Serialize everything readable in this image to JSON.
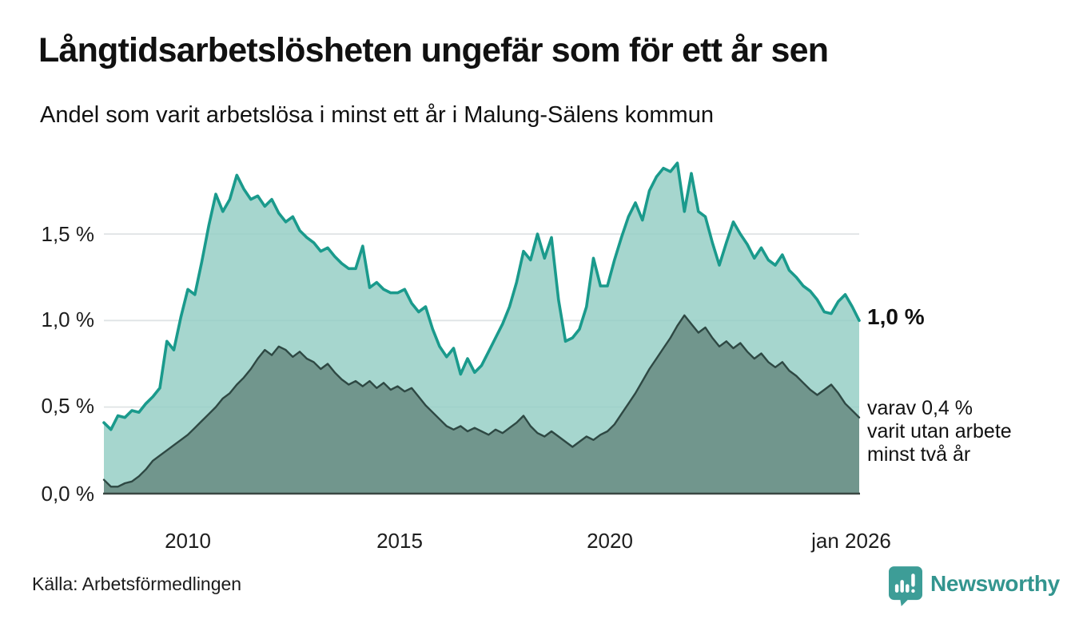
{
  "header": {
    "title": "Långtidsarbetslösheten ungefär som för ett år sen",
    "subtitle": "Andel som varit arbetslösa i minst ett år i Malung-Sälens kommun"
  },
  "chart_data": {
    "type": "area",
    "title": "Långtidsarbetslösheten ungefär som för ett år sen",
    "subtitle": "Andel som varit arbetslösa i minst ett år i Malung-Sälens kommun",
    "unit": "%",
    "x_start": 2008.0,
    "x_end": 2026.0,
    "points_per_year": 6,
    "ylim": [
      0,
      2.0
    ],
    "grid": "horizontal",
    "legend_position": "right-annotations",
    "yticks": [
      {
        "value": 1.5,
        "label": "1,5 %"
      },
      {
        "value": 1.0,
        "label": "1,0 %"
      },
      {
        "value": 0.5,
        "label": "0,5 %"
      },
      {
        "value": 0.0,
        "label": "0,0 %"
      }
    ],
    "xticks": [
      {
        "value": 2010,
        "label": "2010"
      },
      {
        "value": 2015,
        "label": "2015"
      },
      {
        "value": 2020,
        "label": "2020"
      },
      {
        "value": 2026,
        "label": "jan 2026"
      }
    ],
    "series": [
      {
        "name": "Andel arbetslösa minst ett år",
        "latest_value": 1.0,
        "values": [
          0.41,
          0.37,
          0.45,
          0.44,
          0.48,
          0.47,
          0.52,
          0.56,
          0.61,
          0.88,
          0.83,
          1.02,
          1.18,
          1.15,
          1.34,
          1.55,
          1.73,
          1.63,
          1.7,
          1.84,
          1.76,
          1.7,
          1.72,
          1.66,
          1.7,
          1.62,
          1.57,
          1.6,
          1.52,
          1.48,
          1.45,
          1.4,
          1.42,
          1.37,
          1.33,
          1.3,
          1.3,
          1.43,
          1.19,
          1.22,
          1.18,
          1.16,
          1.16,
          1.18,
          1.1,
          1.05,
          1.08,
          0.95,
          0.85,
          0.79,
          0.84,
          0.69,
          0.78,
          0.7,
          0.74,
          0.82,
          0.9,
          0.98,
          1.08,
          1.22,
          1.4,
          1.35,
          1.5,
          1.36,
          1.48,
          1.12,
          0.88,
          0.9,
          0.95,
          1.08,
          1.36,
          1.2,
          1.2,
          1.35,
          1.48,
          1.6,
          1.68,
          1.58,
          1.75,
          1.83,
          1.88,
          1.86,
          1.91,
          1.63,
          1.85,
          1.63,
          1.6,
          1.45,
          1.32,
          1.45,
          1.57,
          1.5,
          1.44,
          1.36,
          1.42,
          1.35,
          1.32,
          1.38,
          1.29,
          1.25,
          1.2,
          1.17,
          1.12,
          1.05,
          1.04,
          1.11,
          1.15,
          1.08,
          1.0
        ]
      },
      {
        "name": "varav utan arbete minst två år",
        "latest_value": 0.4,
        "values": [
          0.08,
          0.04,
          0.04,
          0.06,
          0.07,
          0.1,
          0.14,
          0.19,
          0.22,
          0.25,
          0.28,
          0.31,
          0.34,
          0.38,
          0.42,
          0.46,
          0.5,
          0.55,
          0.58,
          0.63,
          0.67,
          0.72,
          0.78,
          0.83,
          0.8,
          0.85,
          0.83,
          0.79,
          0.82,
          0.78,
          0.76,
          0.72,
          0.75,
          0.7,
          0.66,
          0.63,
          0.65,
          0.62,
          0.65,
          0.61,
          0.64,
          0.6,
          0.62,
          0.59,
          0.61,
          0.56,
          0.51,
          0.47,
          0.43,
          0.39,
          0.37,
          0.39,
          0.36,
          0.38,
          0.36,
          0.34,
          0.37,
          0.35,
          0.38,
          0.41,
          0.45,
          0.39,
          0.35,
          0.33,
          0.36,
          0.33,
          0.3,
          0.27,
          0.3,
          0.33,
          0.31,
          0.34,
          0.36,
          0.4,
          0.46,
          0.52,
          0.58,
          0.65,
          0.72,
          0.78,
          0.84,
          0.9,
          0.97,
          1.03,
          0.98,
          0.93,
          0.96,
          0.9,
          0.85,
          0.88,
          0.84,
          0.87,
          0.82,
          0.78,
          0.81,
          0.76,
          0.73,
          0.76,
          0.71,
          0.68,
          0.64,
          0.6,
          0.57,
          0.6,
          0.63,
          0.58,
          0.52,
          0.48,
          0.44
        ]
      }
    ],
    "annotations": {
      "latest_total": "1,0 %",
      "two_year_note_lines": [
        "varav 0,4 %",
        "varit utan arbete",
        "minst två år"
      ]
    }
  },
  "footer": {
    "source": "Källa: Arbetsförmedlingen",
    "brand": "Newsworthy"
  },
  "colors": {
    "line_one_year": "#1a9a8c",
    "fill_one_year": "#92cdc3",
    "line_two_year": "#2e4843",
    "fill_two_year": "#6f948a",
    "gridline": "#dfe3e5",
    "axis": "#3a4742",
    "brand_teal": "#33958f",
    "text": "#111111"
  }
}
